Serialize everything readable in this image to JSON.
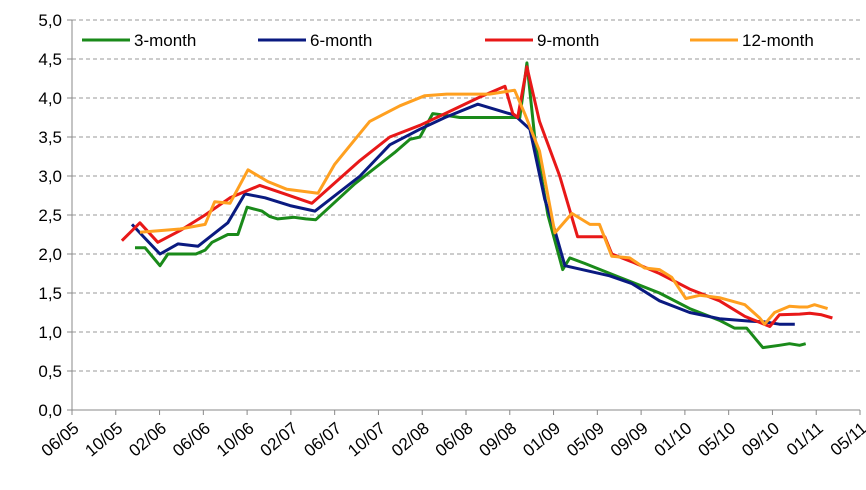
{
  "chart_data": {
    "type": "line",
    "xlim": [
      0,
      18
    ],
    "xticks": [
      {
        "value": 0,
        "label": "06/05"
      },
      {
        "value": 1,
        "label": "10/05"
      },
      {
        "value": 2,
        "label": "02/06"
      },
      {
        "value": 3,
        "label": "06/06"
      },
      {
        "value": 4,
        "label": "10/06"
      },
      {
        "value": 5,
        "label": "02/07"
      },
      {
        "value": 6,
        "label": "06/07"
      },
      {
        "value": 7,
        "label": "10/07"
      },
      {
        "value": 8,
        "label": "02/08"
      },
      {
        "value": 9,
        "label": "06/08"
      },
      {
        "value": 10,
        "label": "09/08"
      },
      {
        "value": 11,
        "label": "01/09"
      },
      {
        "value": 12,
        "label": "05/09"
      },
      {
        "value": 13,
        "label": "09/09"
      },
      {
        "value": 14,
        "label": "01/10"
      },
      {
        "value": 15,
        "label": "05/10"
      },
      {
        "value": 16,
        "label": "09/10"
      },
      {
        "value": 17,
        "label": "01/11"
      },
      {
        "value": 18,
        "label": "05/11"
      }
    ],
    "ylim": [
      0,
      5
    ],
    "yticks": [
      {
        "value": 0,
        "label": "0,0"
      },
      {
        "value": 0.5,
        "label": "0,5"
      },
      {
        "value": 1,
        "label": "1,0"
      },
      {
        "value": 1.5,
        "label": "1,5"
      },
      {
        "value": 2,
        "label": "2,0"
      },
      {
        "value": 2.5,
        "label": "2,5"
      },
      {
        "value": 3,
        "label": "3,0"
      },
      {
        "value": 3.5,
        "label": "3,5"
      },
      {
        "value": 4,
        "label": "4,0"
      },
      {
        "value": 4.5,
        "label": "4,5"
      },
      {
        "value": 5,
        "label": "5,0"
      }
    ],
    "grid": true,
    "legend": "top",
    "series": [
      {
        "name": "3-month",
        "color": "#1a8a1a",
        "x": [
          1.44,
          1.67,
          2.01,
          2.19,
          2.83,
          3.04,
          3.2,
          3.56,
          3.79,
          4.0,
          4.34,
          4.52,
          4.7,
          5.07,
          5.34,
          5.57,
          6.46,
          7.37,
          7.72,
          7.95,
          8.24,
          8.52,
          8.86,
          9.77,
          10.23,
          10.39,
          10.57,
          10.87,
          11.21,
          11.37,
          11.71,
          12.51,
          13.42,
          14.11,
          14.79,
          15.13,
          15.41,
          15.78,
          16.16,
          16.39,
          16.62,
          16.76
        ],
        "values": [
          2.08,
          2.08,
          1.85,
          2.0,
          2.0,
          2.05,
          2.15,
          2.25,
          2.25,
          2.6,
          2.55,
          2.48,
          2.45,
          2.47,
          2.45,
          2.44,
          2.9,
          3.3,
          3.47,
          3.5,
          3.8,
          3.78,
          3.75,
          3.75,
          3.75,
          4.45,
          3.5,
          2.5,
          1.8,
          1.95,
          1.88,
          1.7,
          1.5,
          1.3,
          1.15,
          1.05,
          1.05,
          0.8,
          0.83,
          0.85,
          0.83,
          0.85
        ]
      },
      {
        "name": "6-month",
        "color": "#0a1a80",
        "x": [
          1.37,
          1.67,
          2.01,
          2.42,
          2.88,
          3.56,
          3.95,
          4.41,
          4.98,
          5.55,
          6.58,
          7.26,
          7.95,
          8.52,
          9.27,
          10.11,
          10.46,
          10.8,
          11.03,
          11.26,
          12.28,
          12.79,
          13.42,
          14.11,
          14.79,
          15.48,
          15.82,
          16.16,
          16.51
        ],
        "values": [
          2.38,
          2.2,
          2.0,
          2.13,
          2.1,
          2.4,
          2.77,
          2.72,
          2.62,
          2.55,
          3.0,
          3.4,
          3.6,
          3.75,
          3.92,
          3.78,
          3.6,
          2.7,
          2.3,
          1.85,
          1.72,
          1.62,
          1.4,
          1.25,
          1.17,
          1.14,
          1.13,
          1.1,
          1.1
        ]
      },
      {
        "name": "9-month",
        "color": "#e81818",
        "x": [
          1.14,
          1.55,
          1.96,
          2.47,
          3.04,
          3.61,
          4.29,
          4.86,
          5.48,
          6.58,
          7.26,
          7.95,
          8.52,
          9.27,
          9.89,
          10.07,
          10.18,
          10.39,
          10.68,
          11.14,
          11.55,
          12.17,
          12.33,
          12.79,
          13.42,
          14.11,
          14.79,
          15.37,
          15.94,
          16.16,
          16.62,
          16.85,
          17.12,
          17.37
        ],
        "values": [
          2.17,
          2.4,
          2.15,
          2.3,
          2.5,
          2.72,
          2.88,
          2.77,
          2.65,
          3.2,
          3.5,
          3.65,
          3.8,
          4.0,
          4.15,
          3.8,
          3.75,
          4.4,
          3.7,
          3.0,
          2.22,
          2.22,
          2.0,
          1.9,
          1.75,
          1.55,
          1.4,
          1.2,
          1.07,
          1.22,
          1.23,
          1.24,
          1.22,
          1.18
        ]
      },
      {
        "name": "12-month",
        "color": "#ffa020",
        "x": [
          1.55,
          2.47,
          3.04,
          3.26,
          3.61,
          4.02,
          4.47,
          4.91,
          5.62,
          6.0,
          6.8,
          7.49,
          8.06,
          8.56,
          9.54,
          10.11,
          10.34,
          10.68,
          11.03,
          11.42,
          11.83,
          12.05,
          12.33,
          12.74,
          13.08,
          13.42,
          13.7,
          14.02,
          14.34,
          14.79,
          15.37,
          15.71,
          15.82,
          16.05,
          16.39,
          16.62,
          16.8,
          16.96,
          17.26
        ],
        "values": [
          2.28,
          2.32,
          2.38,
          2.67,
          2.65,
          3.08,
          2.93,
          2.83,
          2.78,
          3.15,
          3.7,
          3.9,
          4.03,
          4.05,
          4.05,
          4.1,
          3.8,
          3.32,
          2.27,
          2.52,
          2.38,
          2.38,
          1.97,
          1.95,
          1.82,
          1.8,
          1.7,
          1.43,
          1.47,
          1.44,
          1.35,
          1.18,
          1.1,
          1.25,
          1.33,
          1.32,
          1.32,
          1.35,
          1.3
        ]
      }
    ]
  }
}
